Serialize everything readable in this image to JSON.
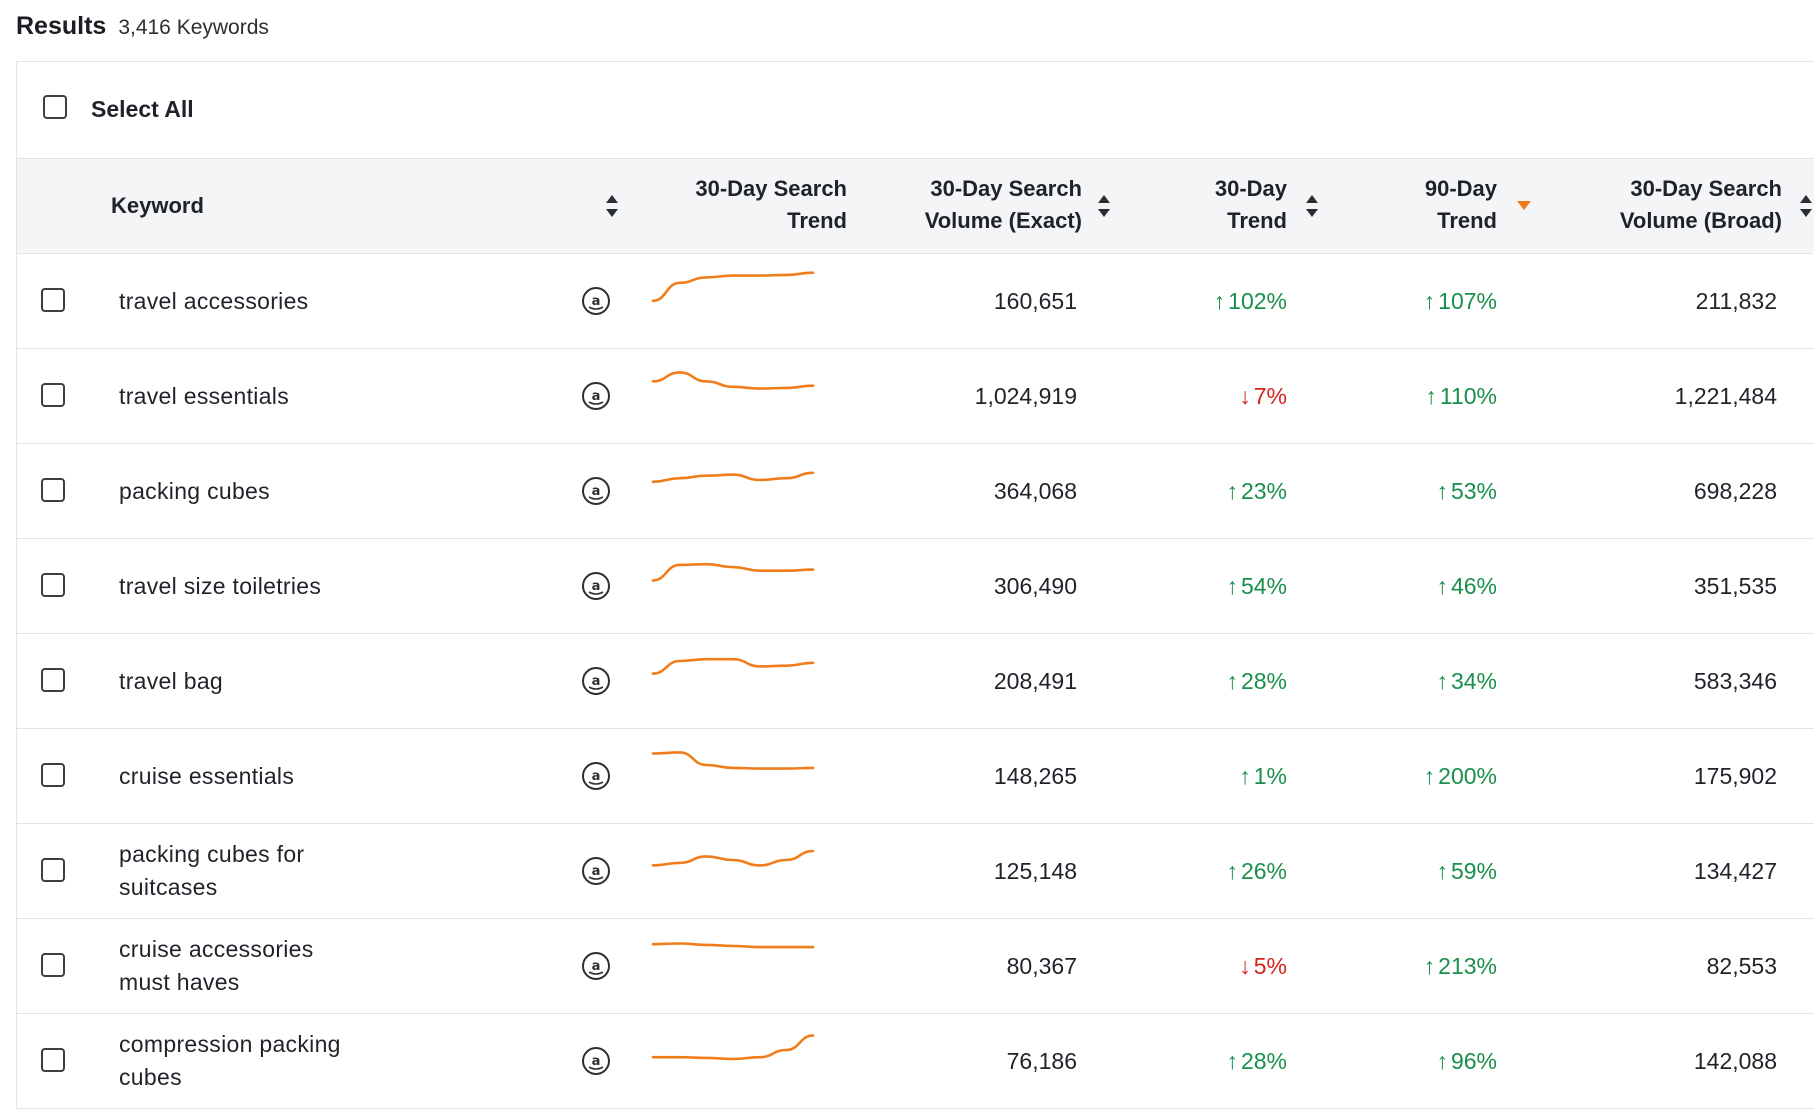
{
  "header": {
    "title": "Results",
    "count": "3,416 Keywords"
  },
  "select_all_label": "Select All",
  "columns": {
    "keyword": "Keyword",
    "trend30_search_l1": "30-Day Search",
    "trend30_search_l2": "Trend",
    "volume_exact_l1": "30-Day Search",
    "volume_exact_l2": "Volume (Exact)",
    "trend30_l1": "30-Day",
    "trend30_l2": "Trend",
    "trend90_l1": "90-Day",
    "trend90_l2": "Trend",
    "volume_broad_l1": "30-Day Search",
    "volume_broad_l2": "Volume (Broad)"
  },
  "colors": {
    "up": "#1a8f4c",
    "down": "#d6231f",
    "sparkline": "#f07d1c",
    "sort_active": "#f07d1c"
  },
  "icons": {
    "source": "amazon-icon"
  },
  "rows": [
    {
      "keyword": "travel accessories",
      "exact": "160,651",
      "t30": "102%",
      "t30_dir": "up",
      "t90": "107%",
      "t90_dir": "up",
      "broad": "211,832",
      "spark": [
        0.2,
        0.7,
        0.85,
        0.9,
        0.9,
        0.92,
        0.98
      ]
    },
    {
      "keyword": "travel essentials",
      "exact": "1,024,919",
      "t30": "7%",
      "t30_dir": "down",
      "t90": "110%",
      "t90_dir": "up",
      "broad": "1,221,484",
      "spark": [
        0.6,
        0.85,
        0.6,
        0.45,
        0.4,
        0.42,
        0.48
      ]
    },
    {
      "keyword": "packing cubes",
      "exact": "364,068",
      "t30": "23%",
      "t30_dir": "up",
      "t90": "53%",
      "t90_dir": "up",
      "broad": "698,228",
      "spark": [
        0.45,
        0.55,
        0.62,
        0.65,
        0.5,
        0.55,
        0.7
      ]
    },
    {
      "keyword": "travel size toiletries",
      "exact": "306,490",
      "t30": "54%",
      "t30_dir": "up",
      "t90": "46%",
      "t90_dir": "up",
      "broad": "351,535",
      "spark": [
        0.35,
        0.78,
        0.8,
        0.72,
        0.62,
        0.62,
        0.65
      ]
    },
    {
      "keyword": "travel bag",
      "exact": "208,491",
      "t30": "28%",
      "t30_dir": "up",
      "t90": "34%",
      "t90_dir": "up",
      "broad": "583,346",
      "spark": [
        0.4,
        0.75,
        0.8,
        0.8,
        0.6,
        0.62,
        0.7
      ]
    },
    {
      "keyword": "cruise essentials",
      "exact": "148,265",
      "t30": "1%",
      "t30_dir": "up",
      "t90": "200%",
      "t90_dir": "up",
      "broad": "175,902",
      "spark": [
        0.82,
        0.85,
        0.5,
        0.42,
        0.4,
        0.4,
        0.42
      ]
    },
    {
      "keyword": "packing cubes for suitcases",
      "exact": "125,148",
      "t30": "26%",
      "t30_dir": "up",
      "t90": "59%",
      "t90_dir": "up",
      "broad": "134,427",
      "spark": [
        0.35,
        0.42,
        0.6,
        0.5,
        0.35,
        0.5,
        0.75
      ]
    },
    {
      "keyword": "cruise accessories must haves",
      "exact": "80,367",
      "t30": "5%",
      "t30_dir": "down",
      "t90": "213%",
      "t90_dir": "up",
      "broad": "82,553",
      "spark": [
        0.8,
        0.82,
        0.78,
        0.75,
        0.72,
        0.72,
        0.72
      ]
    },
    {
      "keyword": "compression packing cubes",
      "exact": "76,186",
      "t30": "28%",
      "t30_dir": "up",
      "t90": "96%",
      "t90_dir": "up",
      "broad": "142,088",
      "spark": [
        0.3,
        0.3,
        0.28,
        0.25,
        0.3,
        0.5,
        0.9
      ]
    }
  ]
}
